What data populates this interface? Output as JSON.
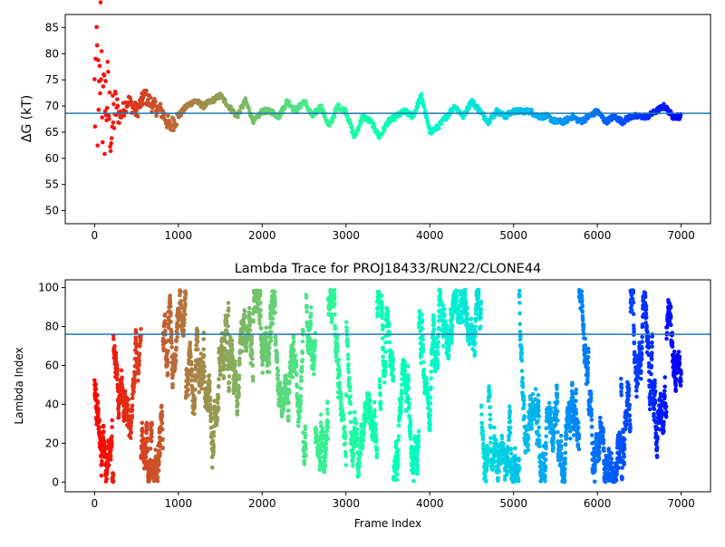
{
  "chart_data": [
    {
      "type": "scatter",
      "title": "",
      "xlabel": "",
      "ylabel": "ΔG (kT)",
      "xlim": [
        -350,
        7350
      ],
      "ylim": [
        47.5,
        87.5
      ],
      "xticks": [
        "0",
        "1000",
        "2000",
        "3000",
        "4000",
        "5000",
        "6000",
        "7000"
      ],
      "yticks": [
        "50",
        "55",
        "60",
        "65",
        "70",
        "75",
        "80",
        "85"
      ],
      "hline": 68.6,
      "hline_color": "#1f77b4",
      "colormap": "rainbow",
      "series": [
        {
          "x": [
            0,
            25,
            50,
            75,
            100,
            150,
            200,
            250,
            300,
            400,
            500,
            600,
            700,
            800,
            900,
            1000,
            1100,
            1200,
            1300,
            1400,
            1500,
            1600,
            1700,
            1800,
            1900,
            2000,
            2100,
            2200,
            2300,
            2400,
            2500,
            2600,
            2700,
            2800,
            2900,
            3000,
            3100,
            3200,
            3300,
            3400,
            3500,
            3600,
            3700,
            3800,
            3900,
            4000,
            4100,
            4200,
            4300,
            4400,
            4500,
            4600,
            4700,
            4800,
            4900,
            5000,
            5100,
            5200,
            5300,
            5400,
            5500,
            5600,
            5700,
            5800,
            5900,
            6000,
            6100,
            6200,
            6300,
            6400,
            6500,
            6600,
            6700,
            6800,
            6900,
            7000
          ],
          "y": [
            70,
            80,
            62,
            85,
            67,
            72,
            65,
            70,
            68,
            71,
            69,
            72,
            70,
            69,
            66,
            68,
            70,
            71,
            70,
            71,
            72,
            70,
            68,
            71,
            67,
            69,
            69,
            68,
            71,
            69,
            71,
            68,
            70,
            66,
            70,
            69,
            64,
            68,
            67,
            64,
            67,
            68,
            69,
            68,
            72,
            65,
            66,
            68,
            70,
            68,
            71,
            69,
            67,
            69,
            68,
            69,
            69,
            69,
            68,
            68,
            67,
            67,
            68,
            67,
            68,
            69,
            67,
            68,
            67,
            68,
            68,
            68,
            69,
            70,
            68,
            68
          ]
        }
      ]
    },
    {
      "type": "scatter",
      "title": "Lambda Trace for PROJ18433/RUN22/CLONE44",
      "xlabel": "Frame Index",
      "ylabel": "Lambda Index",
      "xlim": [
        -350,
        7350
      ],
      "ylim": [
        -5,
        104
      ],
      "xticks": [
        "0",
        "1000",
        "2000",
        "3000",
        "4000",
        "5000",
        "6000",
        "7000"
      ],
      "yticks": [
        "0",
        "20",
        "40",
        "60",
        "80",
        "100"
      ],
      "hline": 76,
      "hline_color": "#1f77b4",
      "colormap": "rainbow",
      "frames": [
        0,
        7000
      ],
      "lambda_range": [
        0,
        99
      ]
    }
  ]
}
